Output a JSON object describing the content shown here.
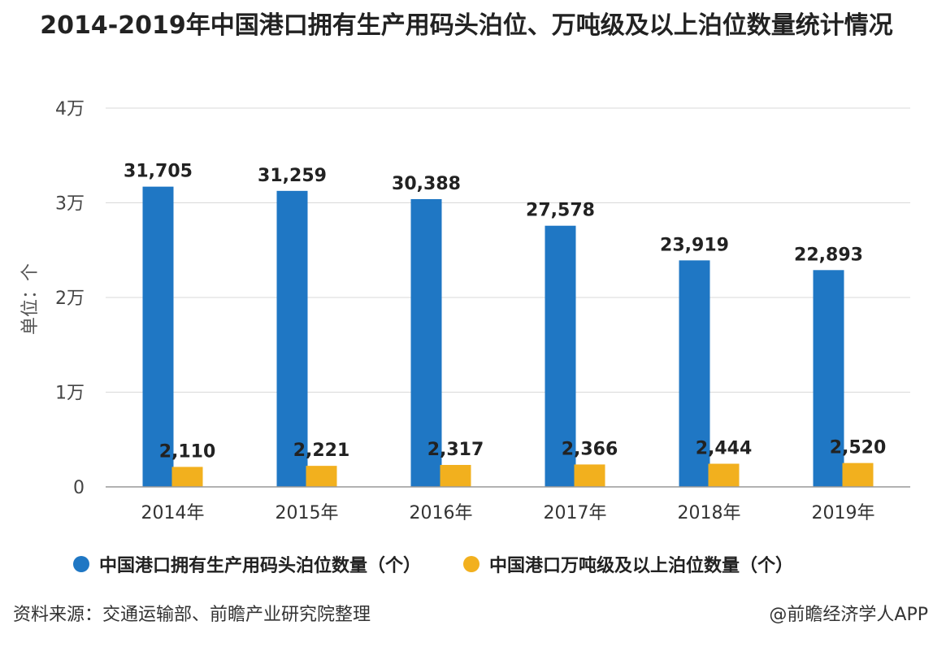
{
  "chart_data": {
    "type": "bar",
    "title": "2014-2019年中国港口拥有生产用码头泊位、万吨级及以上泊位数量统计情况",
    "ylabel": "单位：个",
    "categories": [
      "2014年",
      "2015年",
      "2016年",
      "2017年",
      "2018年",
      "2019年"
    ],
    "series": [
      {
        "name": "中国港口拥有生产用码头泊位数量（个）",
        "color": "#1f77c4",
        "values": [
          31705,
          31259,
          30388,
          27578,
          23919,
          22893
        ],
        "labels": [
          "31,705",
          "31,259",
          "30,388",
          "27,578",
          "23,919",
          "22,893"
        ]
      },
      {
        "name": "中国港口万吨级及以上泊位数量（个）",
        "color": "#f2b01e",
        "values": [
          2110,
          2221,
          2317,
          2366,
          2444,
          2520
        ],
        "labels": [
          "2,110",
          "2,221",
          "2,317",
          "2,366",
          "2,444",
          "2,520"
        ]
      }
    ],
    "ylim": [
      0,
      40000
    ],
    "yticks": [
      0,
      10000,
      20000,
      30000,
      40000
    ],
    "ytick_labels": [
      "0",
      "1万",
      "2万",
      "3万",
      "4万"
    ],
    "grid": true,
    "legend_position": "bottom"
  },
  "footer": {
    "source": "资料来源：交通运输部、前瞻产业研究院整理",
    "credit": "@前瞻经济学人APP"
  }
}
